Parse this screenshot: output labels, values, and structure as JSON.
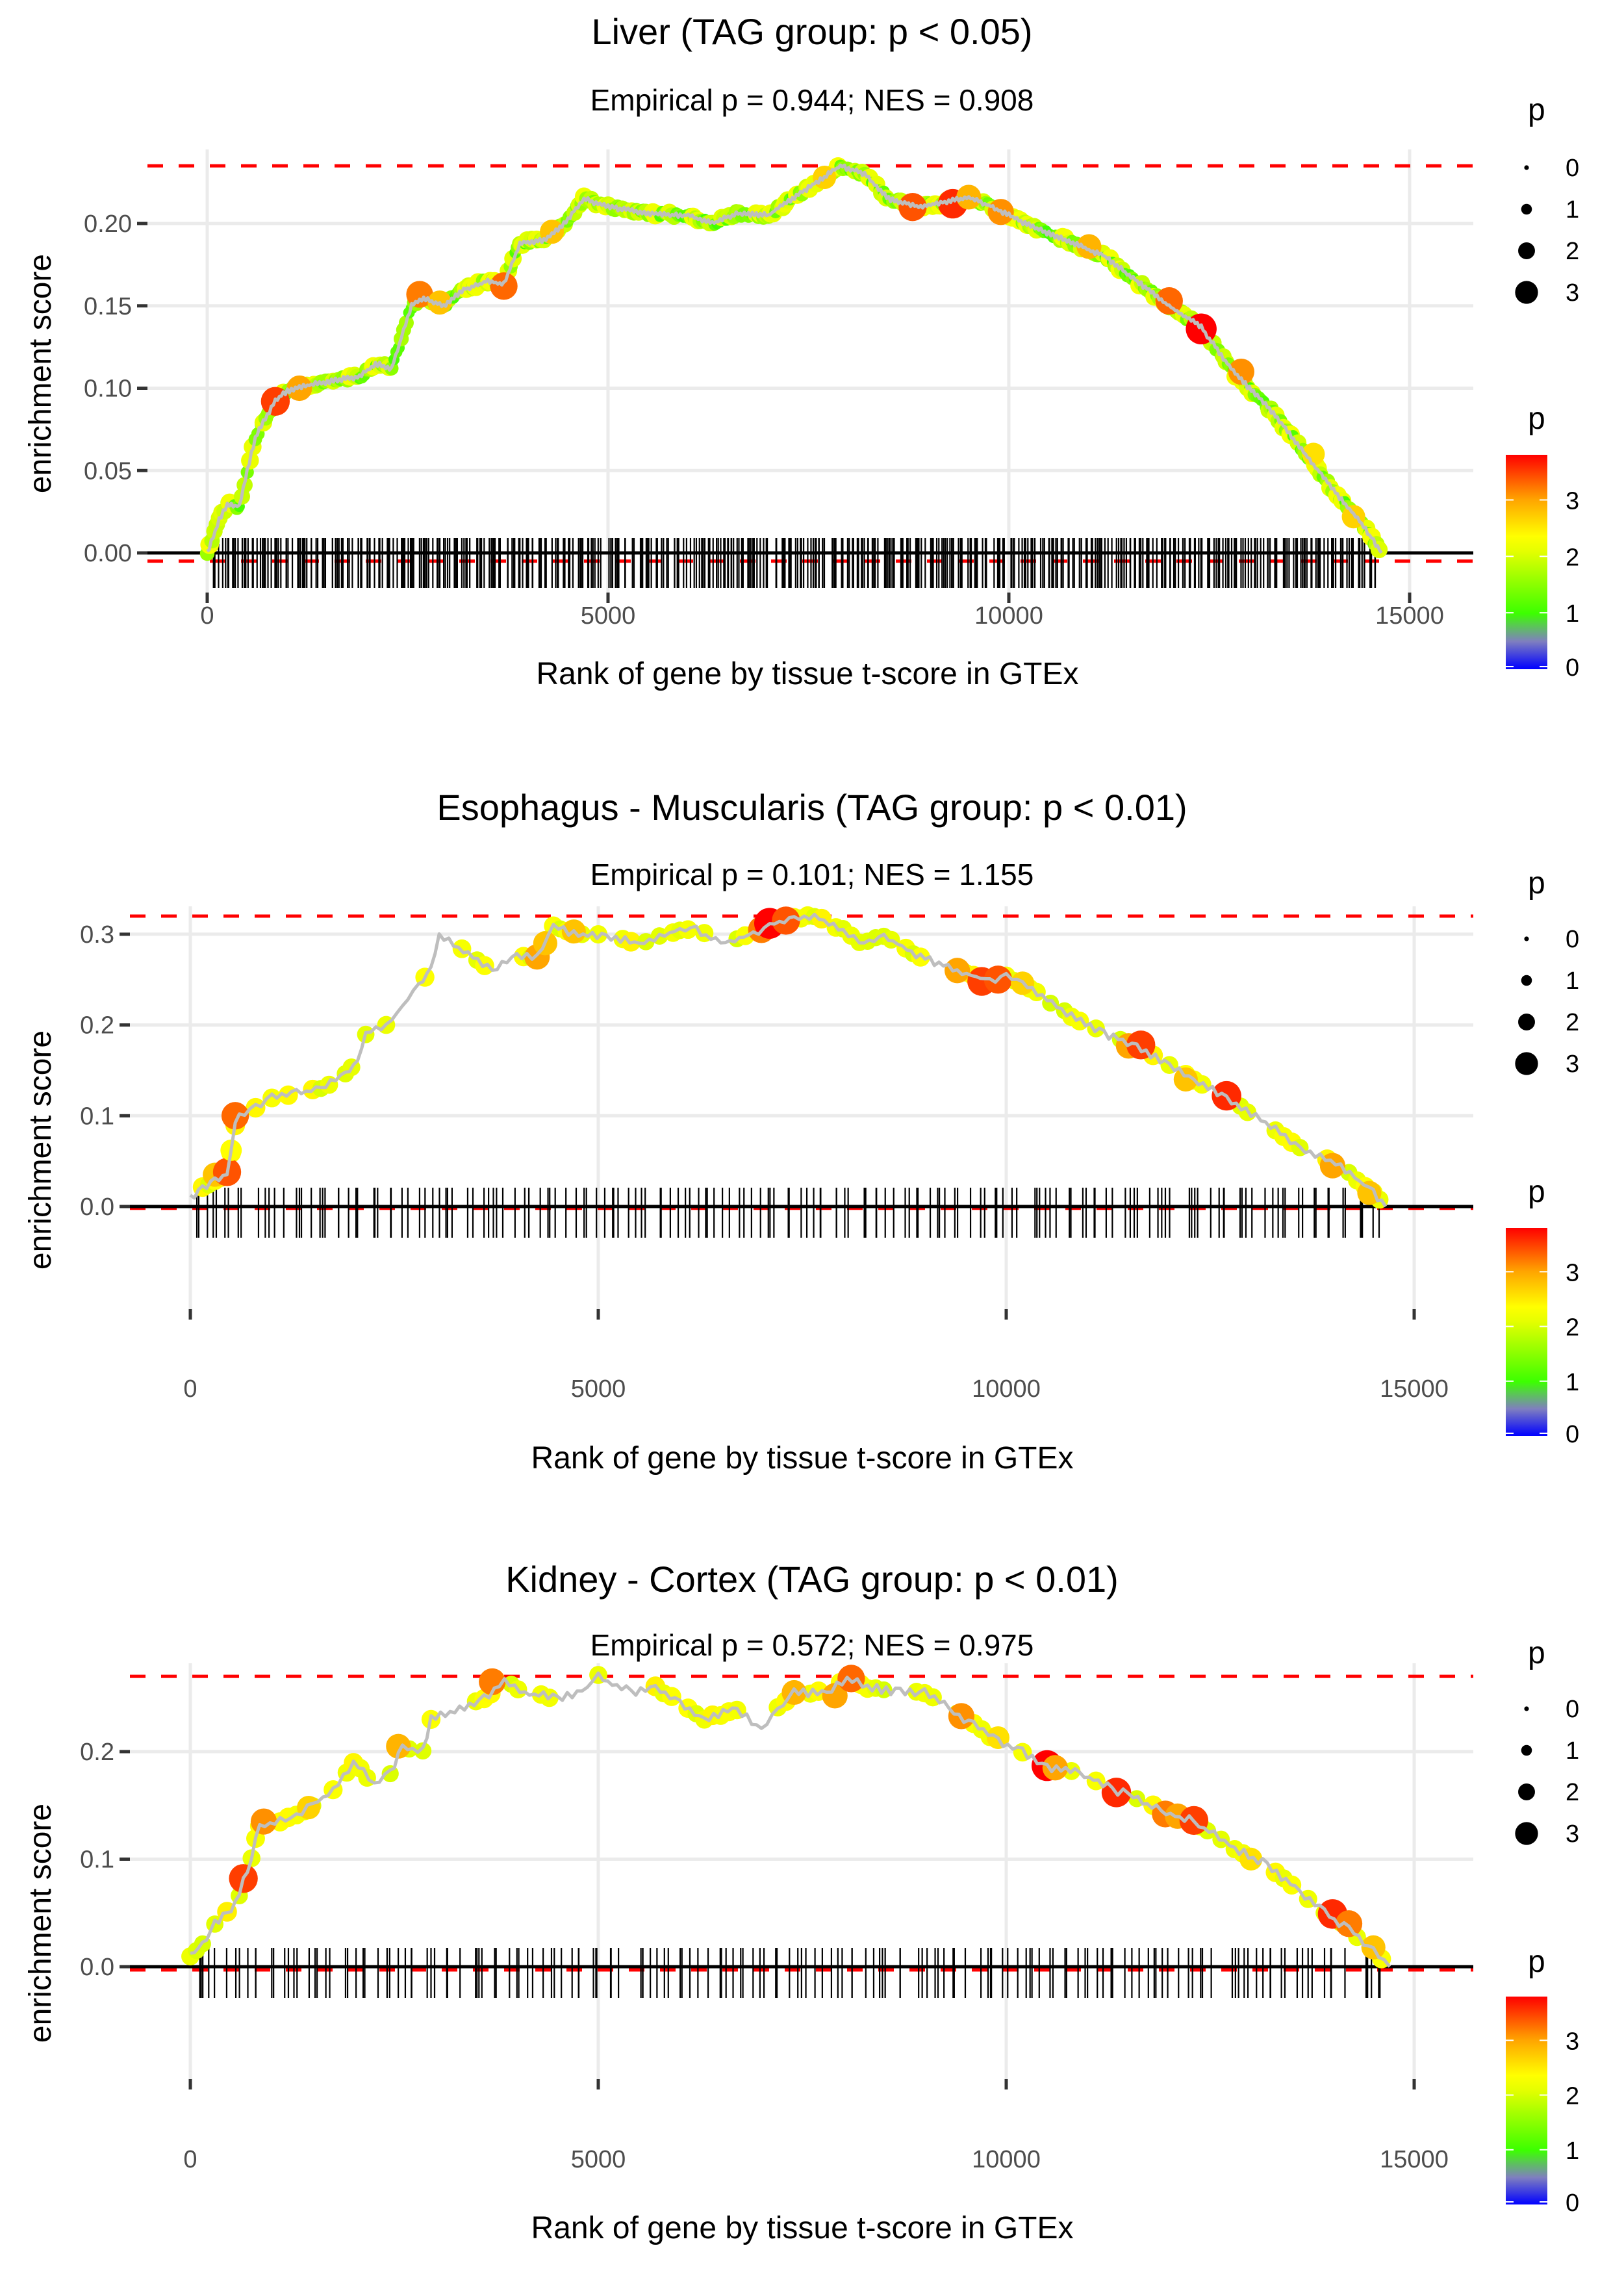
{
  "chart_data": [
    {
      "type": "line",
      "title": "Liver (TAG group: p < 0.05)",
      "subtitle": "Empirical p = 0.944; NES = 0.908",
      "xlabel": "Rank of gene by tissue t-score in GTEx",
      "ylabel": "enrichment score",
      "xlim": [
        -1000,
        15500
      ],
      "ylim": [
        -0.03,
        0.24
      ],
      "x_ticks": [
        0,
        5000,
        10000,
        15000
      ],
      "x_tick_labels": [
        "0",
        "5000",
        "10000",
        "15000"
      ],
      "y_ticks": [
        0.0,
        0.05,
        0.1,
        0.15,
        0.2
      ],
      "y_tick_labels": [
        "0.00",
        "0.05",
        "0.10",
        "0.15",
        "0.20"
      ],
      "max_es_line": 0.235,
      "min_es_line": -0.005,
      "grid": true,
      "curve": [
        [
          0,
          0
        ],
        [
          150,
          0.02
        ],
        [
          250,
          0.03
        ],
        [
          400,
          0.028
        ],
        [
          500,
          0.05
        ],
        [
          600,
          0.07
        ],
        [
          700,
          0.08
        ],
        [
          850,
          0.092
        ],
        [
          950,
          0.097
        ],
        [
          1100,
          0.1
        ],
        [
          1300,
          0.102
        ],
        [
          1600,
          0.105
        ],
        [
          1900,
          0.107
        ],
        [
          2100,
          0.115
        ],
        [
          2300,
          0.112
        ],
        [
          2450,
          0.135
        ],
        [
          2550,
          0.15
        ],
        [
          2700,
          0.155
        ],
        [
          2950,
          0.15
        ],
        [
          3200,
          0.16
        ],
        [
          3500,
          0.165
        ],
        [
          3700,
          0.163
        ],
        [
          3900,
          0.188
        ],
        [
          4200,
          0.19
        ],
        [
          4400,
          0.197
        ],
        [
          4700,
          0.215
        ],
        [
          5000,
          0.21
        ],
        [
          5500,
          0.206
        ],
        [
          6000,
          0.205
        ],
        [
          6300,
          0.2
        ],
        [
          6600,
          0.206
        ],
        [
          7000,
          0.205
        ],
        [
          7300,
          0.215
        ],
        [
          7600,
          0.225
        ],
        [
          7900,
          0.235
        ],
        [
          8200,
          0.23
        ],
        [
          8500,
          0.215
        ],
        [
          8900,
          0.21
        ],
        [
          9200,
          0.213
        ],
        [
          9500,
          0.216
        ],
        [
          9800,
          0.21
        ],
        [
          10200,
          0.2
        ],
        [
          10700,
          0.19
        ],
        [
          11200,
          0.18
        ],
        [
          11600,
          0.165
        ],
        [
          12000,
          0.15
        ],
        [
          12400,
          0.137
        ],
        [
          12800,
          0.11
        ],
        [
          13300,
          0.085
        ],
        [
          13700,
          0.06
        ],
        [
          14100,
          0.035
        ],
        [
          14400,
          0.018
        ],
        [
          14650,
          0.0
        ]
      ],
      "highlight_points": [
        [
          850,
          0.092,
          3.5
        ],
        [
          1150,
          0.1,
          3.0
        ],
        [
          2650,
          0.157,
          3.2
        ],
        [
          2900,
          0.152,
          2.8
        ],
        [
          3700,
          0.162,
          3.3
        ],
        [
          4300,
          0.195,
          2.8
        ],
        [
          7700,
          0.228,
          2.7
        ],
        [
          8800,
          0.21,
          3.4
        ],
        [
          9300,
          0.212,
          3.6
        ],
        [
          9500,
          0.216,
          2.9
        ],
        [
          9900,
          0.207,
          3.1
        ],
        [
          11000,
          0.186,
          2.9
        ],
        [
          12000,
          0.153,
          3.3
        ],
        [
          12400,
          0.136,
          3.8
        ],
        [
          12900,
          0.11,
          3.1
        ],
        [
          13800,
          0.06,
          2.6
        ],
        [
          14300,
          0.022,
          2.7
        ]
      ],
      "background_p_range": [
        1.0,
        2.3
      ],
      "rug_density": "dense",
      "size_legend": {
        "title": "p",
        "values": [
          0,
          1,
          2,
          3
        ]
      },
      "color_legend": {
        "title": "p",
        "ticks": [
          0,
          1,
          2,
          3
        ],
        "range": [
          0,
          3.8
        ]
      }
    },
    {
      "type": "line",
      "title": "Esophagus - Muscularis (TAG group: p < 0.01)",
      "subtitle": "Empirical p = 0.101; NES = 1.155",
      "xlabel": "Rank of gene by tissue t-score in GTEx",
      "ylabel": "enrichment score",
      "xlim": [
        -1000,
        15500
      ],
      "ylim": [
        -0.04,
        0.33
      ],
      "x_ticks": [
        0,
        5000,
        10000,
        15000
      ],
      "x_tick_labels": [
        "0",
        "5000",
        "10000",
        "15000"
      ],
      "y_ticks": [
        0.0,
        0.1,
        0.2,
        0.3
      ],
      "y_tick_labels": [
        "0.0",
        "0.1",
        "0.2",
        "0.3"
      ],
      "max_es_line": 0.32,
      "min_es_line": -0.002,
      "grid": true,
      "curve": [
        [
          0,
          0.01
        ],
        [
          150,
          0.02
        ],
        [
          300,
          0.03
        ],
        [
          450,
          0.035
        ],
        [
          500,
          0.06
        ],
        [
          550,
          0.09
        ],
        [
          600,
          0.1
        ],
        [
          800,
          0.11
        ],
        [
          1000,
          0.12
        ],
        [
          1300,
          0.125
        ],
        [
          1600,
          0.13
        ],
        [
          1900,
          0.145
        ],
        [
          2050,
          0.16
        ],
        [
          2150,
          0.19
        ],
        [
          2400,
          0.2
        ],
        [
          2600,
          0.22
        ],
        [
          2800,
          0.245
        ],
        [
          2950,
          0.26
        ],
        [
          3050,
          0.3
        ],
        [
          3700,
          0.26
        ],
        [
          4000,
          0.275
        ],
        [
          4250,
          0.275
        ],
        [
          4450,
          0.31
        ],
        [
          4700,
          0.3
        ],
        [
          5100,
          0.298
        ],
        [
          5500,
          0.29
        ],
        [
          6000,
          0.305
        ],
        [
          6200,
          0.305
        ],
        [
          6500,
          0.29
        ],
        [
          6900,
          0.3
        ],
        [
          7100,
          0.31
        ],
        [
          7400,
          0.318
        ],
        [
          7650,
          0.32
        ],
        [
          8000,
          0.305
        ],
        [
          8200,
          0.29
        ],
        [
          8500,
          0.298
        ],
        [
          8950,
          0.275
        ],
        [
          9400,
          0.26
        ],
        [
          9800,
          0.248
        ],
        [
          10000,
          0.255
        ],
        [
          10200,
          0.245
        ],
        [
          10800,
          0.21
        ],
        [
          11200,
          0.19
        ],
        [
          11600,
          0.177
        ],
        [
          12000,
          0.155
        ],
        [
          12300,
          0.14
        ],
        [
          12700,
          0.12
        ],
        [
          13300,
          0.085
        ],
        [
          13600,
          0.065
        ],
        [
          14100,
          0.045
        ],
        [
          14500,
          0.015
        ],
        [
          14650,
          0.0
        ]
      ],
      "highlight_points": [
        [
          300,
          0.035,
          2.8
        ],
        [
          450,
          0.038,
          3.4
        ],
        [
          550,
          0.1,
          3.3
        ],
        [
          500,
          0.062,
          2.4
        ],
        [
          4250,
          0.275,
          3.0
        ],
        [
          4350,
          0.29,
          2.8
        ],
        [
          4700,
          0.303,
          2.8
        ],
        [
          7000,
          0.305,
          3.2
        ],
        [
          7100,
          0.312,
          3.8
        ],
        [
          7300,
          0.315,
          3.4
        ],
        [
          9400,
          0.26,
          3.0
        ],
        [
          9700,
          0.248,
          3.5
        ],
        [
          9900,
          0.25,
          3.4
        ],
        [
          10200,
          0.246,
          2.7
        ],
        [
          11500,
          0.177,
          3.0
        ],
        [
          11650,
          0.178,
          3.5
        ],
        [
          12200,
          0.14,
          2.8
        ],
        [
          12700,
          0.122,
          3.6
        ],
        [
          14000,
          0.045,
          3.0
        ],
        [
          14450,
          0.015,
          2.8
        ]
      ],
      "background_p_range": [
        2.0,
        2.5
      ],
      "rug_density": "sparse",
      "size_legend": {
        "title": "p",
        "values": [
          0,
          1,
          2,
          3
        ]
      },
      "color_legend": {
        "title": "p",
        "ticks": [
          0,
          1,
          2,
          3
        ],
        "range": [
          0,
          3.8
        ]
      }
    },
    {
      "type": "line",
      "title": "Kidney - Cortex (TAG group: p < 0.01)",
      "subtitle": "Empirical p = 0.572; NES = 0.975",
      "xlabel": "Rank of gene by tissue t-score in GTEx",
      "ylabel": "enrichment score",
      "xlim": [
        -1000,
        15500
      ],
      "ylim": [
        -0.03,
        0.28
      ],
      "x_ticks": [
        0,
        5000,
        10000,
        15000
      ],
      "x_tick_labels": [
        "0",
        "5000",
        "10000",
        "15000"
      ],
      "y_ticks": [
        0.0,
        0.1,
        0.2
      ],
      "y_tick_labels": [
        "0.0",
        "0.1",
        "0.2"
      ],
      "max_es_line": 0.27,
      "min_es_line": -0.003,
      "grid": true,
      "curve": [
        [
          0,
          0.01
        ],
        [
          150,
          0.02
        ],
        [
          300,
          0.04
        ],
        [
          450,
          0.05
        ],
        [
          600,
          0.065
        ],
        [
          650,
          0.08
        ],
        [
          750,
          0.1
        ],
        [
          800,
          0.12
        ],
        [
          850,
          0.13
        ],
        [
          1100,
          0.135
        ],
        [
          1300,
          0.14
        ],
        [
          1500,
          0.15
        ],
        [
          1750,
          0.165
        ],
        [
          2000,
          0.19
        ],
        [
          2250,
          0.17
        ],
        [
          2450,
          0.18
        ],
        [
          2600,
          0.205
        ],
        [
          2850,
          0.2
        ],
        [
          2950,
          0.23
        ],
        [
          3300,
          0.24
        ],
        [
          3600,
          0.25
        ],
        [
          3850,
          0.265
        ],
        [
          4100,
          0.255
        ],
        [
          4500,
          0.25
        ],
        [
          4800,
          0.255
        ],
        [
          5000,
          0.27
        ],
        [
          5400,
          0.255
        ],
        [
          5700,
          0.26
        ],
        [
          6000,
          0.245
        ],
        [
          6300,
          0.23
        ],
        [
          6700,
          0.24
        ],
        [
          7000,
          0.22
        ],
        [
          7200,
          0.24
        ],
        [
          7400,
          0.255
        ],
        [
          7800,
          0.255
        ],
        [
          8050,
          0.268
        ],
        [
          8300,
          0.26
        ],
        [
          8700,
          0.255
        ],
        [
          9000,
          0.255
        ],
        [
          9300,
          0.24
        ],
        [
          9600,
          0.225
        ],
        [
          9900,
          0.21
        ],
        [
          10200,
          0.2
        ],
        [
          10500,
          0.185
        ],
        [
          10900,
          0.18
        ],
        [
          11300,
          0.165
        ],
        [
          11500,
          0.16
        ],
        [
          11900,
          0.145
        ],
        [
          12300,
          0.135
        ],
        [
          12800,
          0.11
        ],
        [
          13200,
          0.095
        ],
        [
          13600,
          0.07
        ],
        [
          13900,
          0.05
        ],
        [
          14200,
          0.035
        ],
        [
          14500,
          0.015
        ],
        [
          14700,
          0.0
        ]
      ],
      "highlight_points": [
        [
          650,
          0.082,
          3.5
        ],
        [
          900,
          0.135,
          3.1
        ],
        [
          1450,
          0.148,
          2.7
        ],
        [
          2550,
          0.205,
          2.9
        ],
        [
          3700,
          0.265,
          3.2
        ],
        [
          7400,
          0.255,
          2.9
        ],
        [
          7900,
          0.252,
          3.0
        ],
        [
          8100,
          0.268,
          3.3
        ],
        [
          9450,
          0.233,
          3.1
        ],
        [
          9900,
          0.213,
          2.6
        ],
        [
          10500,
          0.187,
          3.8
        ],
        [
          10600,
          0.185,
          3.0
        ],
        [
          11350,
          0.162,
          3.6
        ],
        [
          11950,
          0.142,
          3.2
        ],
        [
          12100,
          0.14,
          3.0
        ],
        [
          12300,
          0.136,
          3.5
        ],
        [
          13000,
          0.1,
          2.6
        ],
        [
          14000,
          0.049,
          3.6
        ],
        [
          14200,
          0.04,
          3.2
        ],
        [
          14500,
          0.018,
          2.8
        ]
      ],
      "background_p_range": [
        2.0,
        2.5
      ],
      "rug_density": "sparse",
      "size_legend": {
        "title": "p",
        "values": [
          0,
          1,
          2,
          3
        ]
      },
      "color_legend": {
        "title": "p",
        "ticks": [
          0,
          1,
          2,
          3
        ],
        "range": [
          0,
          3.8
        ]
      }
    }
  ]
}
